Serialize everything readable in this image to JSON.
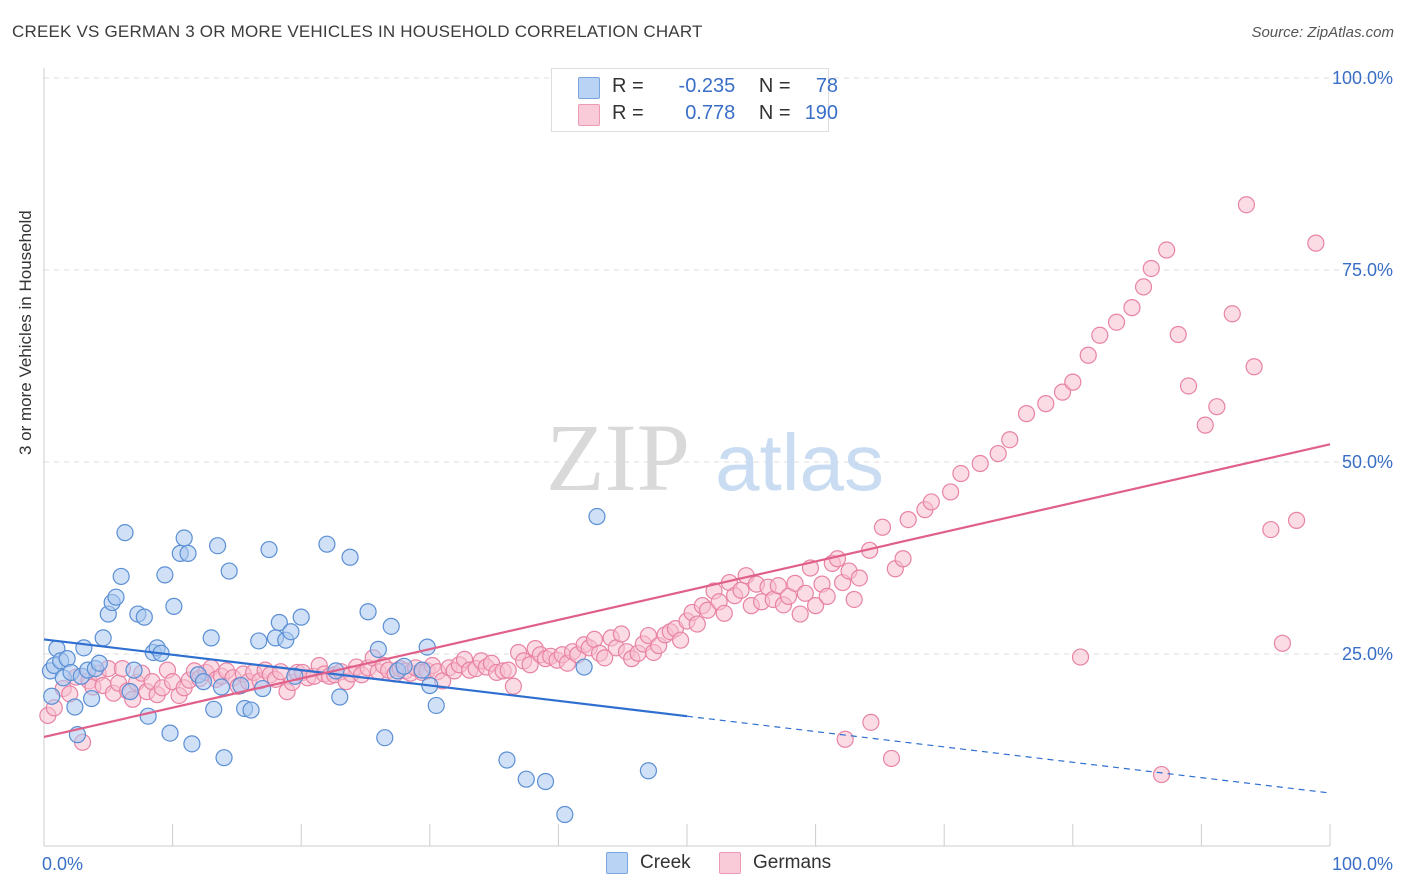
{
  "title": "CREEK VS GERMAN 3 OR MORE VEHICLES IN HOUSEHOLD CORRELATION CHART",
  "source": "Source: ZipAtlas.com",
  "watermark": {
    "zip": "ZIP",
    "atlas": "atlas"
  },
  "legend": {
    "creek": {
      "r_label": "R =",
      "r_value": "-0.235",
      "n_label": "N =",
      "n_value": "78"
    },
    "germans": {
      "r_label": "R =",
      "r_value": "0.778",
      "n_label": "N =",
      "n_value": "190"
    }
  },
  "colors": {
    "creek_fill": "#a9c8f0",
    "creek_stroke": "#5b8fd4",
    "creek_line": "#2f6fd0",
    "germans_fill": "#f7bfd0",
    "germans_stroke": "#e883a4",
    "germans_line": "#e0608a",
    "tick_label": "#3a6fc7",
    "grid": "#dddddd"
  },
  "chart_data": {
    "type": "scatter",
    "title": "CREEK VS GERMAN 3 OR MORE VEHICLES IN HOUSEHOLD CORRELATION CHART",
    "xlabel": "",
    "ylabel": "3 or more Vehicles in Household",
    "xlim": [
      0,
      100
    ],
    "ylim": [
      0,
      100
    ],
    "x_tick_labels": [
      "0.0%",
      "100.0%"
    ],
    "y_ticks": [
      25,
      50,
      75,
      100
    ],
    "y_tick_labels": [
      "25.0%",
      "50.0%",
      "75.0%",
      "100.0%"
    ],
    "grid": true,
    "legend_position": "top-center",
    "series": [
      {
        "name": "Creek",
        "R": -0.235,
        "N": 78,
        "trend": {
          "x0": 0,
          "y0": 26.9,
          "x1": 50,
          "y1": 16.9,
          "dashed_to_x": 100,
          "dashed_to_y": 6.9
        },
        "points": [
          [
            0.5,
            22.8
          ],
          [
            0.8,
            23.5
          ],
          [
            1,
            25.7
          ],
          [
            1.3,
            24.1
          ],
          [
            1.5,
            21.9
          ],
          [
            1.8,
            24.4
          ],
          [
            2.1,
            22.6
          ],
          [
            2.4,
            18.1
          ],
          [
            2.6,
            14.5
          ],
          [
            2.9,
            22.1
          ],
          [
            3.1,
            25.8
          ],
          [
            3.4,
            22.9
          ],
          [
            3.7,
            19.2
          ],
          [
            4,
            23.1
          ],
          [
            4.3,
            23.8
          ],
          [
            4.6,
            27.1
          ],
          [
            5,
            30.2
          ],
          [
            5.3,
            31.7
          ],
          [
            5.6,
            32.4
          ],
          [
            6,
            35.1
          ],
          [
            6.3,
            40.8
          ],
          [
            6.7,
            20.1
          ],
          [
            7,
            22.9
          ],
          [
            7.3,
            30.2
          ],
          [
            7.8,
            29.8
          ],
          [
            8.1,
            16.9
          ],
          [
            8.5,
            25.2
          ],
          [
            8.8,
            25.8
          ],
          [
            9.1,
            25.1
          ],
          [
            9.4,
            35.3
          ],
          [
            9.8,
            14.7
          ],
          [
            10.1,
            31.2
          ],
          [
            10.6,
            38.1
          ],
          [
            10.9,
            40.1
          ],
          [
            11.2,
            38.1
          ],
          [
            11.5,
            13.3
          ],
          [
            12,
            22.3
          ],
          [
            12.4,
            21.4
          ],
          [
            13,
            27.1
          ],
          [
            13.2,
            17.8
          ],
          [
            13.5,
            39.1
          ],
          [
            13.8,
            20.7
          ],
          [
            14,
            11.5
          ],
          [
            14.4,
            35.8
          ],
          [
            15.3,
            20.9
          ],
          [
            15.6,
            17.9
          ],
          [
            16.1,
            17.7
          ],
          [
            16.7,
            26.7
          ],
          [
            17,
            20.5
          ],
          [
            17.5,
            38.6
          ],
          [
            18,
            27.1
          ],
          [
            18.3,
            29.1
          ],
          [
            18.8,
            26.8
          ],
          [
            19.2,
            27.9
          ],
          [
            19.5,
            22.1
          ],
          [
            20,
            29.8
          ],
          [
            22,
            39.3
          ],
          [
            22.7,
            22.8
          ],
          [
            23,
            19.4
          ],
          [
            23.8,
            37.6
          ],
          [
            25.2,
            30.5
          ],
          [
            26,
            25.6
          ],
          [
            26.5,
            14.1
          ],
          [
            27,
            28.6
          ],
          [
            27.5,
            22.8
          ],
          [
            28,
            23.4
          ],
          [
            29.4,
            22.9
          ],
          [
            29.8,
            25.9
          ],
          [
            30,
            20.9
          ],
          [
            30.5,
            18.3
          ],
          [
            36,
            11.2
          ],
          [
            37.5,
            8.7
          ],
          [
            39,
            8.4
          ],
          [
            40.5,
            4.1
          ],
          [
            42,
            23.3
          ],
          [
            43,
            42.9
          ],
          [
            47,
            9.8
          ],
          [
            0.6,
            19.5
          ]
        ]
      },
      {
        "name": "Germans",
        "R": 0.778,
        "N": 190,
        "trend": {
          "x0": 0,
          "y0": 14.2,
          "x1": 100,
          "y1": 52.3
        },
        "points": [
          [
            0.3,
            17
          ],
          [
            0.8,
            18
          ],
          [
            1.5,
            20.5
          ],
          [
            2,
            19.8
          ],
          [
            2.5,
            22
          ],
          [
            3,
            13.5
          ],
          [
            3.5,
            21.5
          ],
          [
            3.8,
            20.7
          ],
          [
            4.2,
            22.5
          ],
          [
            4.6,
            20.9
          ],
          [
            5,
            23.1
          ],
          [
            5.4,
            19.9
          ],
          [
            5.8,
            21.2
          ],
          [
            6.1,
            23.1
          ],
          [
            6.5,
            20.2
          ],
          [
            6.9,
            19.1
          ],
          [
            7.2,
            21.3
          ],
          [
            7.6,
            22.5
          ],
          [
            8,
            20.1
          ],
          [
            8.4,
            21.4
          ],
          [
            8.8,
            19.7
          ],
          [
            9.2,
            20.6
          ],
          [
            9.6,
            22.9
          ],
          [
            10,
            21.4
          ],
          [
            10.5,
            19.6
          ],
          [
            10.9,
            20.6
          ],
          [
            11.3,
            21.6
          ],
          [
            11.7,
            22.8
          ],
          [
            12.1,
            21.8
          ],
          [
            12.6,
            22.6
          ],
          [
            13,
            23.2
          ],
          [
            13.4,
            21.7
          ],
          [
            13.8,
            22.1
          ],
          [
            14.2,
            22.8
          ],
          [
            14.7,
            21.9
          ],
          [
            15.1,
            20.8
          ],
          [
            15.5,
            22.4
          ],
          [
            15.9,
            21.4
          ],
          [
            16.3,
            22.6
          ],
          [
            16.8,
            21.5
          ],
          [
            17.2,
            22.9
          ],
          [
            17.6,
            22.3
          ],
          [
            18,
            21.7
          ],
          [
            18.4,
            22.7
          ],
          [
            18.9,
            20.1
          ],
          [
            19.3,
            21.3
          ],
          [
            19.7,
            22.6
          ],
          [
            20.1,
            22.6
          ],
          [
            20.5,
            21.9
          ],
          [
            21,
            22.1
          ],
          [
            21.4,
            23.5
          ],
          [
            21.8,
            22.4
          ],
          [
            22.2,
            22.1
          ],
          [
            22.6,
            22.3
          ],
          [
            23.1,
            22.7
          ],
          [
            23.5,
            21.4
          ],
          [
            23.9,
            22.4
          ],
          [
            24.3,
            23.3
          ],
          [
            24.7,
            22.3
          ],
          [
            25.2,
            23.2
          ],
          [
            25.6,
            24.5
          ],
          [
            26,
            22.7
          ],
          [
            26.4,
            23.5
          ],
          [
            26.8,
            22.9
          ],
          [
            27.3,
            22.4
          ],
          [
            27.7,
            23.1
          ],
          [
            28.1,
            22.8
          ],
          [
            28.5,
            22.5
          ],
          [
            28.9,
            23.2
          ],
          [
            29.4,
            22.6
          ],
          [
            29.8,
            22.8
          ],
          [
            30.2,
            23.5
          ],
          [
            30.6,
            22.7
          ],
          [
            31,
            21.5
          ],
          [
            31.5,
            23.2
          ],
          [
            31.9,
            22.8
          ],
          [
            32.3,
            23.6
          ],
          [
            32.7,
            24.3
          ],
          [
            33.1,
            22.9
          ],
          [
            33.6,
            23.1
          ],
          [
            34,
            24.1
          ],
          [
            34.4,
            23.3
          ],
          [
            34.8,
            23.8
          ],
          [
            35.2,
            22.6
          ],
          [
            35.7,
            22.8
          ],
          [
            36.1,
            22.9
          ],
          [
            36.5,
            20.8
          ],
          [
            36.9,
            25.2
          ],
          [
            37.3,
            24.1
          ],
          [
            37.8,
            23.6
          ],
          [
            38.2,
            25.7
          ],
          [
            38.6,
            24.9
          ],
          [
            39,
            24.4
          ],
          [
            39.4,
            24.7
          ],
          [
            39.9,
            24.2
          ],
          [
            40.3,
            24.9
          ],
          [
            40.7,
            23.8
          ],
          [
            41.1,
            25.3
          ],
          [
            41.5,
            24.9
          ],
          [
            42,
            26.2
          ],
          [
            42.4,
            25.8
          ],
          [
            42.8,
            26.9
          ],
          [
            43.2,
            25.1
          ],
          [
            43.6,
            24.5
          ],
          [
            44.1,
            27.1
          ],
          [
            44.5,
            25.8
          ],
          [
            44.9,
            27.6
          ],
          [
            45.3,
            25.3
          ],
          [
            45.7,
            24.4
          ],
          [
            46.2,
            25.1
          ],
          [
            46.6,
            26.3
          ],
          [
            47,
            27.4
          ],
          [
            47.4,
            25.2
          ],
          [
            47.8,
            26.1
          ],
          [
            48.3,
            27.5
          ],
          [
            48.7,
            27.9
          ],
          [
            49.1,
            28.3
          ],
          [
            49.5,
            26.8
          ],
          [
            50,
            29.3
          ],
          [
            50.4,
            30.4
          ],
          [
            50.8,
            28.9
          ],
          [
            51.2,
            31.3
          ],
          [
            51.6,
            30.7
          ],
          [
            52.1,
            33.2
          ],
          [
            52.5,
            31.8
          ],
          [
            52.9,
            30.3
          ],
          [
            53.3,
            34.3
          ],
          [
            53.7,
            32.6
          ],
          [
            54.2,
            33.3
          ],
          [
            54.6,
            35.2
          ],
          [
            55,
            31.3
          ],
          [
            55.4,
            34.1
          ],
          [
            55.8,
            31.8
          ],
          [
            56.3,
            33.7
          ],
          [
            56.7,
            32.1
          ],
          [
            57.1,
            33.9
          ],
          [
            57.5,
            31.4
          ],
          [
            57.9,
            32.5
          ],
          [
            58.4,
            34.2
          ],
          [
            58.8,
            30.2
          ],
          [
            59.2,
            32.9
          ],
          [
            59.6,
            36.2
          ],
          [
            60,
            31.3
          ],
          [
            60.5,
            34.1
          ],
          [
            60.9,
            32.5
          ],
          [
            61.3,
            36.8
          ],
          [
            61.7,
            37.4
          ],
          [
            62.1,
            34.3
          ],
          [
            62.6,
            35.8
          ],
          [
            63,
            32.1
          ],
          [
            63.4,
            34.9
          ],
          [
            64.2,
            38.5
          ],
          [
            65.2,
            41.5
          ],
          [
            66.2,
            36.1
          ],
          [
            66.8,
            37.4
          ],
          [
            67.2,
            42.5
          ],
          [
            68.5,
            43.8
          ],
          [
            69,
            44.8
          ],
          [
            70.5,
            46.1
          ],
          [
            71.3,
            48.5
          ],
          [
            72.8,
            49.8
          ],
          [
            74.2,
            51.1
          ],
          [
            75.1,
            52.9
          ],
          [
            76.4,
            56.3
          ],
          [
            77.9,
            57.6
          ],
          [
            79.2,
            59.1
          ],
          [
            80,
            60.4
          ],
          [
            81.2,
            63.9
          ],
          [
            82.1,
            66.5
          ],
          [
            83.4,
            68.2
          ],
          [
            84.6,
            70.1
          ],
          [
            85.5,
            72.8
          ],
          [
            86.1,
            75.2
          ],
          [
            87.3,
            77.6
          ],
          [
            88.2,
            66.6
          ],
          [
            89,
            59.9
          ],
          [
            90.3,
            54.8
          ],
          [
            91.2,
            57.2
          ],
          [
            92.4,
            69.3
          ],
          [
            93.5,
            83.5
          ],
          [
            94.1,
            62.4
          ],
          [
            95.4,
            41.2
          ],
          [
            96.3,
            26.4
          ],
          [
            97.4,
            42.4
          ],
          [
            98.9,
            78.5
          ],
          [
            65.9,
            11.4
          ],
          [
            64.3,
            16.1
          ],
          [
            62.3,
            13.9
          ],
          [
            86.9,
            9.3
          ],
          [
            80.6,
            24.6
          ]
        ]
      }
    ]
  }
}
